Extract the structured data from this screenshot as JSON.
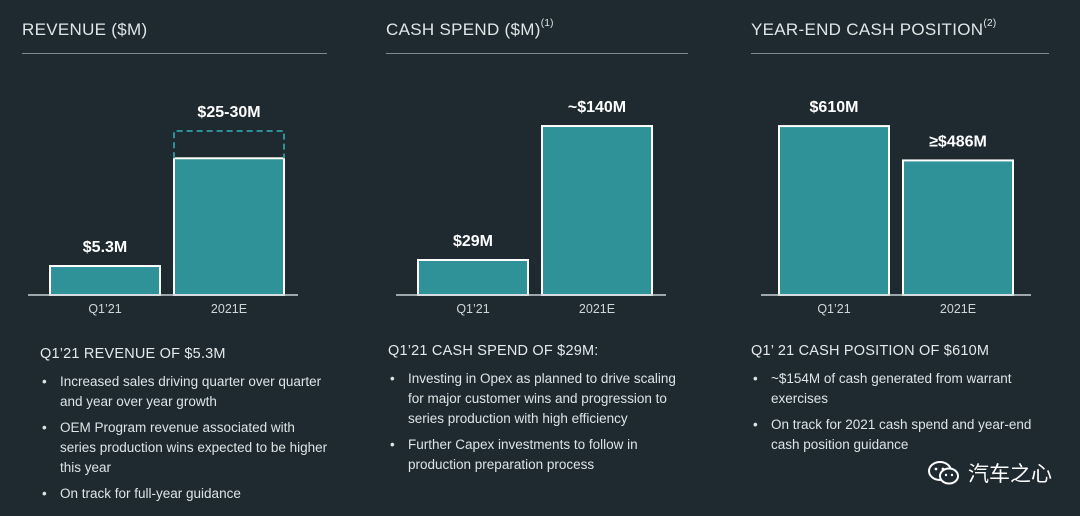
{
  "colors": {
    "background": "#1f2a30",
    "bar": "#2e9298",
    "bar_outline": "#ffffff",
    "text": "#e8eef0"
  },
  "panels": [
    {
      "title": "REVENUE ($M)",
      "footnote": "",
      "summary": "Q1’21 REVENUE OF $5.3M",
      "bullets": [
        "Increased sales driving quarter over quarter and year over year growth",
        "OEM Program revenue associated with series production wins expected to be higher this year",
        "On track for full-year guidance"
      ]
    },
    {
      "title": "CASH SPEND ($M)",
      "footnote": "(1)",
      "summary": "Q1’21 CASH SPEND OF $29M:",
      "bullets": [
        "Investing in Opex as planned to drive scaling for major customer wins and progression to series production with high efficiency",
        "Further Capex investments to follow in production preparation process"
      ]
    },
    {
      "title": "YEAR-END CASH POSITION",
      "footnote": "(2)",
      "summary": "Q1’ 21 CASH POSITION OF $610M",
      "bullets": [
        "~$154M of cash generated from warrant exercises",
        "On track for 2021 cash spend and year-end cash position guidance"
      ]
    }
  ],
  "chart_data": [
    {
      "type": "bar",
      "title": "REVENUE ($M)",
      "categories": [
        "Q1’21",
        "2021E"
      ],
      "values": [
        5.3,
        25
      ],
      "range_high": [
        null,
        30
      ],
      "data_labels": [
        "$5.3M",
        "$25-30M"
      ],
      "ylim": [
        0,
        32
      ],
      "grid": false
    },
    {
      "type": "bar",
      "title": "CASH SPEND ($M)",
      "categories": [
        "Q1’21",
        "2021E"
      ],
      "values": [
        29,
        140
      ],
      "data_labels": [
        "$29M",
        "~$140M"
      ],
      "ylim": [
        0,
        145
      ],
      "grid": false
    },
    {
      "type": "bar",
      "title": "YEAR-END CASH POSITION",
      "categories": [
        "Q1’21",
        "2021E"
      ],
      "values": [
        610,
        486
      ],
      "data_labels": [
        "$610M",
        "≥$486M"
      ],
      "ylim": [
        0,
        632
      ],
      "grid": false
    }
  ],
  "watermark": {
    "text": "汽车之心",
    "icon": "wechat-icon"
  }
}
